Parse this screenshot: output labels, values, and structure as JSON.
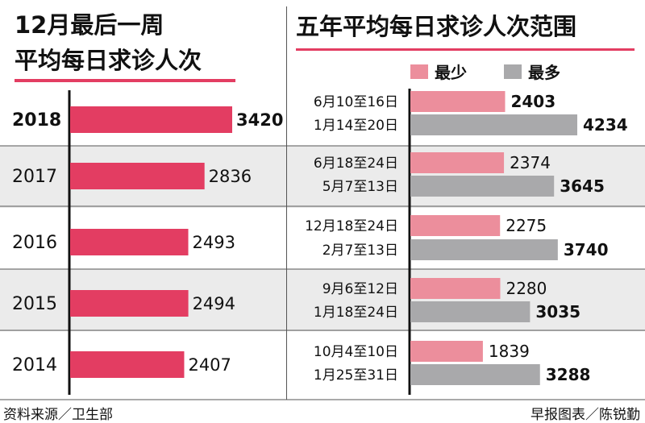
{
  "left": {
    "title_line1": "12月最后一周",
    "title_line2": "平均每日求诊人次"
  },
  "right": {
    "title": "五年平均每日求诊人次范围",
    "legend_min": "最少",
    "legend_max": "最多"
  },
  "footer": {
    "source": "资料来源／卫生部",
    "credit": "早报图表／陈锐勤"
  },
  "colors": {
    "accent": "#e33d62",
    "min_bar": "#ec8e9c",
    "max_bar": "#a9a9ab",
    "band": "#ebebeb"
  },
  "chart_data": [
    {
      "type": "bar",
      "orientation": "horizontal",
      "title": "12月最后一周平均每日求诊人次",
      "categories": [
        "2018",
        "2017",
        "2016",
        "2015",
        "2014"
      ],
      "values": [
        3420,
        2836,
        2493,
        2494,
        2407
      ],
      "highlight": "2018",
      "xlim": [
        0,
        3500
      ],
      "grid": false
    },
    {
      "type": "bar",
      "orientation": "horizontal",
      "title": "五年平均每日求诊人次范围",
      "legend": "top",
      "xlim": [
        0,
        4500
      ],
      "grid": false,
      "groups": [
        {
          "year": "2018",
          "min": {
            "period": "6月10至16日",
            "value": 2403
          },
          "max": {
            "period": "1月14至20日",
            "value": 4234
          }
        },
        {
          "year": "2017",
          "min": {
            "period": "6月18至24日",
            "value": 2374
          },
          "max": {
            "period": "5月7至13日",
            "value": 3645
          }
        },
        {
          "year": "2016",
          "min": {
            "period": "12月18至24日",
            "value": 2275
          },
          "max": {
            "period": "2月7至13日",
            "value": 3740
          }
        },
        {
          "year": "2015",
          "min": {
            "period": "9月6至12日",
            "value": 2280
          },
          "max": {
            "period": "1月18至24日",
            "value": 3035
          }
        },
        {
          "year": "2014",
          "min": {
            "period": "10月4至10日",
            "value": 1839
          },
          "max": {
            "period": "1月25至31日",
            "value": 3288
          }
        }
      ],
      "series": [
        {
          "name": "最少",
          "values": [
            2403,
            2374,
            2275,
            2280,
            1839
          ]
        },
        {
          "name": "最多",
          "values": [
            4234,
            3645,
            3740,
            3035,
            3288
          ]
        }
      ]
    }
  ]
}
